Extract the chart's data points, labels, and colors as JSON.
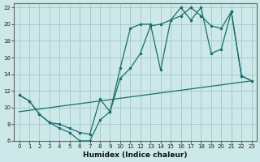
{
  "xlabel": "Humidex (Indice chaleur)",
  "bg_color": "#cce8e8",
  "grid_color": "#aacccc",
  "line_color": "#1a6e6e",
  "xlim": [
    -0.5,
    23.5
  ],
  "ylim": [
    6,
    22.5
  ],
  "xticks": [
    0,
    1,
    2,
    3,
    4,
    5,
    6,
    7,
    8,
    9,
    10,
    11,
    12,
    13,
    14,
    15,
    16,
    17,
    18,
    19,
    20,
    21,
    22,
    23
  ],
  "yticks": [
    6,
    8,
    10,
    12,
    14,
    16,
    18,
    20,
    22
  ],
  "line1_x": [
    0,
    1,
    2,
    3,
    4,
    5,
    6,
    7,
    8,
    9,
    10,
    11,
    12,
    13,
    14,
    15,
    16,
    17,
    18,
    19,
    20,
    21,
    22,
    23
  ],
  "line1_y": [
    11.5,
    10.8,
    9.2,
    8.2,
    7.5,
    7.0,
    6.0,
    6.0,
    8.5,
    9.5,
    13.5,
    14.7,
    16.5,
    19.8,
    20.0,
    20.5,
    21.0,
    22.0,
    21.0,
    19.8,
    19.5,
    21.5,
    13.8,
    13.2
  ],
  "line2_x": [
    0,
    1,
    2,
    3,
    4,
    5,
    6,
    7,
    8,
    9,
    10,
    11,
    12,
    13,
    14,
    15,
    16,
    17,
    18,
    19,
    20,
    21,
    22,
    23
  ],
  "line2_y": [
    11.5,
    10.8,
    9.2,
    8.2,
    8.0,
    7.5,
    7.0,
    6.8,
    11.0,
    9.5,
    14.7,
    19.5,
    20.0,
    20.0,
    14.5,
    20.5,
    22.0,
    20.5,
    22.0,
    16.5,
    17.0,
    21.5,
    13.8,
    13.2
  ],
  "line3_x": [
    0,
    23
  ],
  "line3_y": [
    9.5,
    13.2
  ]
}
